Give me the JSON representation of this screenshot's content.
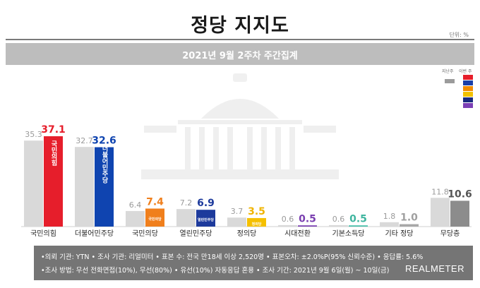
{
  "header": {
    "title": "정당 지지도",
    "unit": "단위: %",
    "subtitle": "2021년 9월 2주차 주간집계"
  },
  "legend": {
    "previous_label": "지난주",
    "current_label": "이번 주",
    "previous_color": "#9b9b9b",
    "current_colors": [
      "#e61e2b",
      "#1a3fa8",
      "#f28c00",
      "#f2c200",
      "#1a2a80",
      "#7b3fb5"
    ]
  },
  "chart_data": {
    "type": "bar",
    "categories": [
      "국민의힘",
      "더불어민주당",
      "국민의당",
      "열린민주당",
      "정의당",
      "시대전환",
      "기본소득당",
      "기타 정당",
      "무당층"
    ],
    "series": [
      {
        "values": [
          35.3,
          32.7,
          6.4,
          7.2,
          3.7,
          0.6,
          0.6,
          1.8,
          11.8
        ]
      },
      {
        "values": [
          37.1,
          32.6,
          7.4,
          6.9,
          3.5,
          0.5,
          0.5,
          1.0,
          10.6
        ]
      }
    ],
    "bar_colors_current": [
      "#e61e2b",
      "#0f44b0",
      "#f07f1c",
      "#1d3a9c",
      "#f5c000",
      "#7a3fb0",
      "#45bfa8",
      "#a8a8a8",
      "#8c8c8c"
    ],
    "value_colors_current": [
      "#e61e2b",
      "#0f44b0",
      "#f07f1c",
      "#1d3a9c",
      "#f0b400",
      "#7a3fb0",
      "#3fb59f",
      "#a0a0a0",
      "#555555"
    ],
    "bar_labels": [
      "국민의힘",
      "더불어민주당",
      "국민의당",
      "열린민주당",
      "정의당"
    ],
    "ylim": [
      0,
      40
    ]
  },
  "footer": {
    "line1": "•의뢰 기관: YTN  • 조사 기관: 리얼미터  • 표본 수: 전국 만18세 이상 2,520명  • 표본오차: ±2.0%P(95% 신뢰수준)  • 응답률: 5.6%",
    "line2": "•조사 방법: 무선 전화면접(10%), 무선(80%)  • 유선(10%) 자동응답 혼용  • 조사 기간: 2021년 9월 6일(월) ~ 10일(금)",
    "brand": "REALMETER"
  }
}
